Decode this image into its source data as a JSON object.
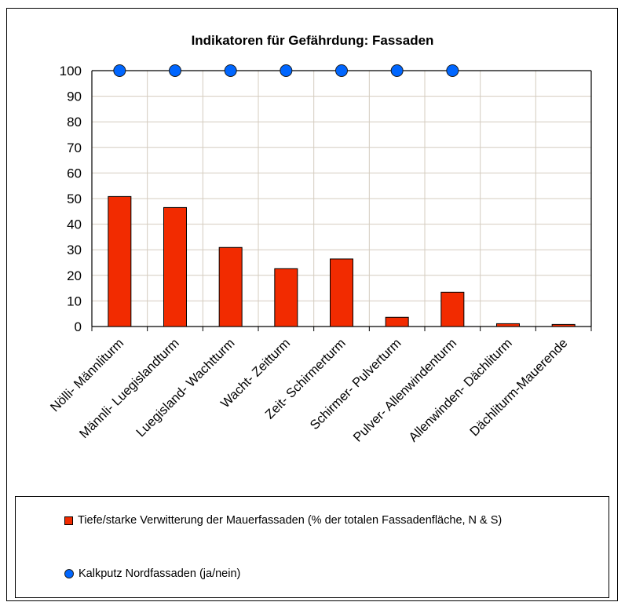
{
  "chart_data": {
    "type": "bar",
    "title": "Indikatoren für Gefährdung: Fassaden",
    "xlabel": "",
    "ylabel": "",
    "ylim": [
      0,
      100
    ],
    "yticks": [
      0,
      10,
      20,
      30,
      40,
      50,
      60,
      70,
      80,
      90,
      100
    ],
    "grid": true,
    "legend_position": "bottom",
    "categories": [
      "Nölli- Männliturm",
      "Männli- Luegislandturm",
      "Luegisland- Wachtturm",
      "Wacht- Zeitturm",
      "Zeit- Schirmerturm",
      "Schirmer- Pulverturm",
      "Pulver- Allenwindenturm",
      "Allenwinden- Dächliturm",
      "Dächliturm-Mauerende"
    ],
    "series": [
      {
        "name": "Tiefe/starke Verwitterung der Mauerfassaden (% der totalen Fassadenfläche, N & S)",
        "type": "bar",
        "color": "#f22b00",
        "values": [
          50.8,
          46.5,
          30.9,
          22.6,
          26.4,
          3.6,
          13.4,
          1.1,
          0.8
        ]
      },
      {
        "name": "Kalkputz Nordfassaden (ja/nein)",
        "type": "scatter",
        "color": "#0066ff",
        "values": [
          100,
          100,
          100,
          100,
          100,
          100,
          100,
          null,
          null
        ]
      }
    ]
  },
  "legend": {
    "items": [
      {
        "label": "Tiefe/starke Verwitterung der Mauerfassaden (% der totalen Fassadenfläche, N & S)"
      },
      {
        "label": "Kalkputz Nordfassaden (ja/nein)"
      }
    ]
  }
}
